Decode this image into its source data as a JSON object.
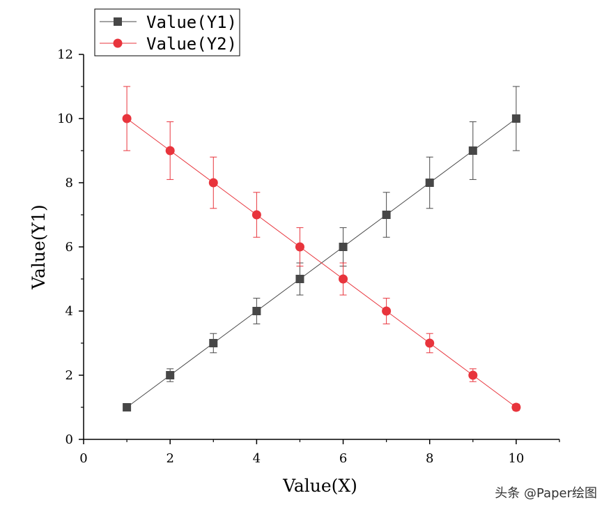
{
  "chart_data": {
    "type": "line",
    "title": "",
    "xlabel": "Value(X)",
    "ylabel": "Value(Y1)",
    "xlim": [
      0,
      11
    ],
    "ylim": [
      0,
      12
    ],
    "x_ticks": [
      0,
      2,
      4,
      6,
      8,
      10
    ],
    "y_ticks": [
      0,
      2,
      4,
      6,
      8,
      10,
      12
    ],
    "grid": false,
    "legend_position": "top-left",
    "x": [
      1,
      2,
      3,
      4,
      5,
      6,
      7,
      8,
      9,
      10
    ],
    "series": [
      {
        "name": "Value(Y1)",
        "color": "#474747",
        "marker": "square",
        "values": [
          1,
          2,
          3,
          4,
          5,
          6,
          7,
          8,
          9,
          10
        ],
        "error": [
          0.1,
          0.2,
          0.3,
          0.4,
          0.5,
          0.6,
          0.7,
          0.8,
          0.9,
          1.0
        ]
      },
      {
        "name": "Value(Y2)",
        "color": "#e8343c",
        "marker": "circle",
        "values": [
          10,
          9,
          8,
          7,
          6,
          5,
          4,
          3,
          2,
          1
        ],
        "error": [
          1.0,
          0.9,
          0.8,
          0.7,
          0.6,
          0.5,
          0.4,
          0.3,
          0.2,
          0.1
        ]
      }
    ]
  },
  "watermark": "头条 @Paper绘图"
}
